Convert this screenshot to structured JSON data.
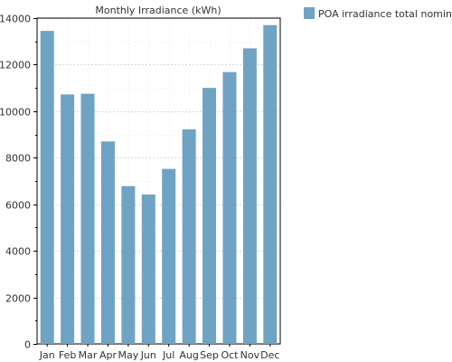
{
  "chart_data": {
    "type": "bar",
    "title": "Monthly Irradiance (kWh)",
    "xlabel": "",
    "ylabel": "",
    "categories": [
      "Jan",
      "Feb",
      "Mar",
      "Apr",
      "May",
      "Jun",
      "Jul",
      "Aug",
      "Sep",
      "Oct",
      "Nov",
      "Dec"
    ],
    "series": [
      {
        "name": "POA irradiance total nominal",
        "values": [
          13450,
          10720,
          10750,
          8700,
          6780,
          6420,
          7520,
          9220,
          11000,
          11680,
          12700,
          13700
        ],
        "color": "#6fa3c4"
      }
    ],
    "ylim": [
      0,
      14000
    ],
    "yticks": [
      0,
      2000,
      4000,
      6000,
      8000,
      10000,
      12000,
      14000
    ],
    "grid": true,
    "legend_position": "top-right"
  }
}
